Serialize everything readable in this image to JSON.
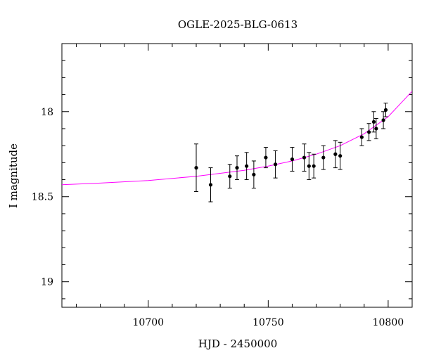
{
  "chart_data": {
    "type": "scatter",
    "title": "OGLE-2025-BLG-0613",
    "xlabel": "HJD - 2450000",
    "ylabel": "I magnitude",
    "xlim": [
      10664,
      10810
    ],
    "ylim": [
      19.15,
      17.6
    ],
    "y_inverted": true,
    "grid": false,
    "x_major_ticks": [
      10700,
      10750,
      10800
    ],
    "x_tick_labels": [
      "10700",
      "10750",
      "10800"
    ],
    "y_major_ticks": [
      18,
      18.5,
      19
    ],
    "y_tick_labels": [
      "18",
      "18.5",
      "19"
    ],
    "colors": {
      "model": "#ff00ff",
      "points": "#000000"
    },
    "series": [
      {
        "type": "scatter",
        "x": [
          10720,
          10726,
          10734,
          10737,
          10741,
          10744,
          10749,
          10753,
          10760,
          10765,
          10767,
          10769,
          10773,
          10778,
          10780,
          10789,
          10792,
          10794,
          10795,
          10798,
          10799
        ],
        "y": [
          18.33,
          18.43,
          18.38,
          18.33,
          18.32,
          18.37,
          18.27,
          18.31,
          18.28,
          18.27,
          18.32,
          18.32,
          18.27,
          18.25,
          18.26,
          18.15,
          18.12,
          18.06,
          18.1,
          18.05,
          17.99
        ],
        "err": [
          0.14,
          0.1,
          0.07,
          0.07,
          0.08,
          0.08,
          0.06,
          0.08,
          0.07,
          0.08,
          0.08,
          0.07,
          0.07,
          0.08,
          0.08,
          0.05,
          0.05,
          0.06,
          0.06,
          0.05,
          0.04
        ]
      },
      {
        "type": "line",
        "x": [
          10664,
          10680,
          10700,
          10720,
          10740,
          10750,
          10760,
          10770,
          10780,
          10790,
          10800,
          10810
        ],
        "y": [
          18.43,
          18.42,
          18.405,
          18.38,
          18.345,
          18.32,
          18.29,
          18.25,
          18.2,
          18.13,
          18.03,
          17.88
        ]
      }
    ]
  }
}
